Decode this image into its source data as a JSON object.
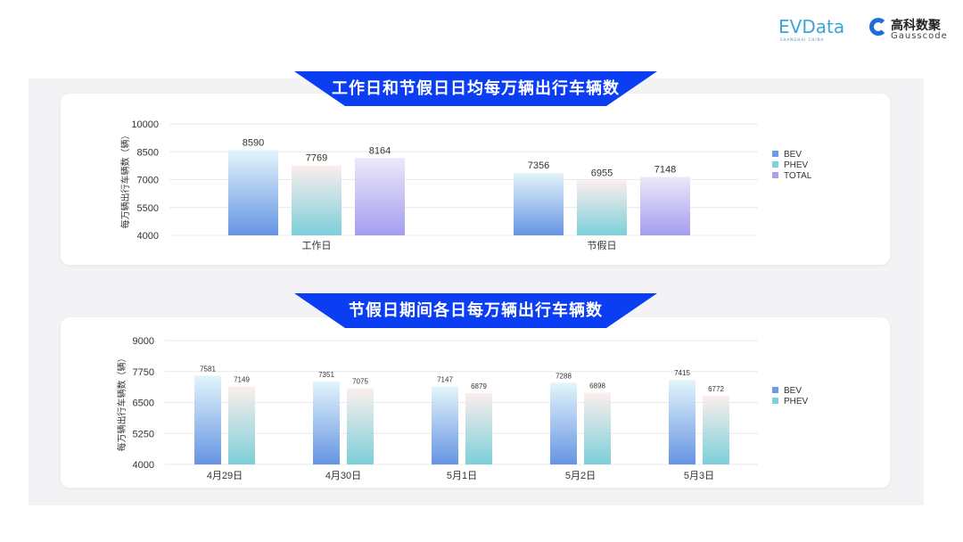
{
  "logos": {
    "evdata": "EVData",
    "evdata_sub": "SHANGHAI CHINA",
    "gauss_cn": "高科数聚",
    "gauss_en": "Gausscode"
  },
  "colors": {
    "banner": "#0b3df2",
    "BEV": "#6a9be4",
    "PHEV": "#7fd0da",
    "TOTAL": "#a9a1ea"
  },
  "chart_data": [
    {
      "type": "bar",
      "title": "工作日和节假日日均每万辆出行车辆数",
      "ylabel": "每万辆出行车辆数（辆）",
      "categories": [
        "工作日",
        "节假日"
      ],
      "ylim": [
        4000,
        10000
      ],
      "yticks": [
        4000,
        5500,
        7000,
        8500,
        10000
      ],
      "grid": true,
      "legend": "right",
      "series": [
        {
          "name": "BEV",
          "values": [
            8590,
            7356
          ]
        },
        {
          "name": "PHEV",
          "values": [
            7769,
            6955
          ]
        },
        {
          "name": "TOTAL",
          "values": [
            8164,
            7148
          ]
        }
      ]
    },
    {
      "type": "bar",
      "title": "节假日期间各日每万辆出行车辆数",
      "ylabel": "每万辆出行车辆数（辆）",
      "categories": [
        "4月29日",
        "4月30日",
        "5月1日",
        "5月2日",
        "5月3日"
      ],
      "ylim": [
        4000,
        9000
      ],
      "yticks": [
        4000,
        5250,
        6500,
        7750,
        9000
      ],
      "grid": true,
      "legend": "right",
      "series": [
        {
          "name": "BEV",
          "values": [
            7581,
            7351,
            7147,
            7288,
            7415
          ]
        },
        {
          "name": "PHEV",
          "values": [
            7149,
            7075,
            6879,
            6898,
            6772
          ]
        }
      ]
    }
  ]
}
